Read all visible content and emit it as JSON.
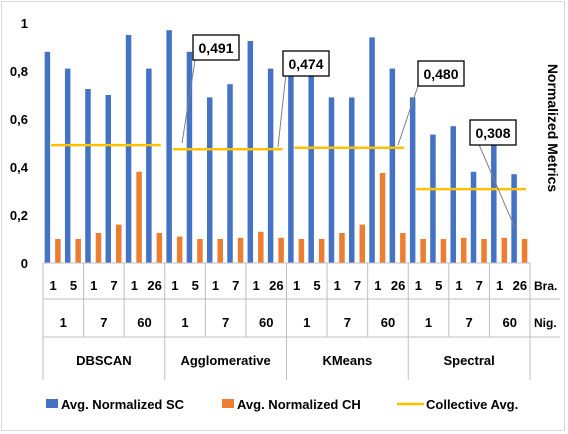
{
  "chart_data": {
    "type": "bar",
    "title": "",
    "ylabel": "Normalized Metrics",
    "ylim": [
      0,
      1
    ],
    "yticks": [
      "0",
      "0,2",
      "0,4",
      "0,6",
      "0,8",
      "1"
    ],
    "grid": false,
    "legend_position": "bottom",
    "axis_row_labels": {
      "branches": "Bra.",
      "nights": "Nig."
    },
    "algorithms": [
      {
        "name": "DBSCAN",
        "nights": [
          "1",
          "7",
          "60"
        ],
        "branches": [
          "1",
          "5",
          "1",
          "7",
          "1",
          "26"
        ],
        "sc": [
          0.88,
          0.81,
          0.725,
          0.7,
          0.95,
          0.81
        ],
        "ch": [
          0.1,
          0.1,
          0.125,
          0.16,
          0.38,
          0.125
        ],
        "collective_avg": 0.491,
        "collective_avg_label": "0,491"
      },
      {
        "name": "Agglomerative",
        "nights": [
          "1",
          "7",
          "60"
        ],
        "branches": [
          "1",
          "5",
          "1",
          "7",
          "1",
          "26"
        ],
        "sc": [
          0.97,
          0.88,
          0.69,
          0.745,
          0.925,
          0.81
        ],
        "ch": [
          0.11,
          0.1,
          0.1,
          0.105,
          0.13,
          0.105
        ],
        "collective_avg": 0.474,
        "collective_avg_label": "0,474"
      },
      {
        "name": "KMeans",
        "nights": [
          "1",
          "7",
          "60"
        ],
        "branches": [
          "1",
          "5",
          "1",
          "7",
          "1",
          "26"
        ],
        "sc": [
          0.82,
          0.81,
          0.69,
          0.69,
          0.94,
          0.81
        ],
        "ch": [
          0.1,
          0.1,
          0.125,
          0.16,
          0.375,
          0.125
        ],
        "collective_avg": 0.48,
        "collective_avg_label": "0,480"
      },
      {
        "name": "Spectral",
        "nights": [
          "1",
          "7",
          "60"
        ],
        "branches": [
          "1",
          "5",
          "1",
          "7",
          "1",
          "26"
        ],
        "sc": [
          0.69,
          0.535,
          0.57,
          0.38,
          0.52,
          0.37
        ],
        "ch": [
          0.1,
          0.1,
          0.105,
          0.1,
          0.105,
          0.1
        ],
        "collective_avg": 0.308,
        "collective_avg_label": "0,308"
      }
    ],
    "series": [
      {
        "name": "Avg.  Normalized SC",
        "color": "#4472c4"
      },
      {
        "name": "Avg.  Normalized CH",
        "color": "#ed7d31"
      },
      {
        "name": "Collective Avg.",
        "color": "#ffc000"
      }
    ]
  }
}
